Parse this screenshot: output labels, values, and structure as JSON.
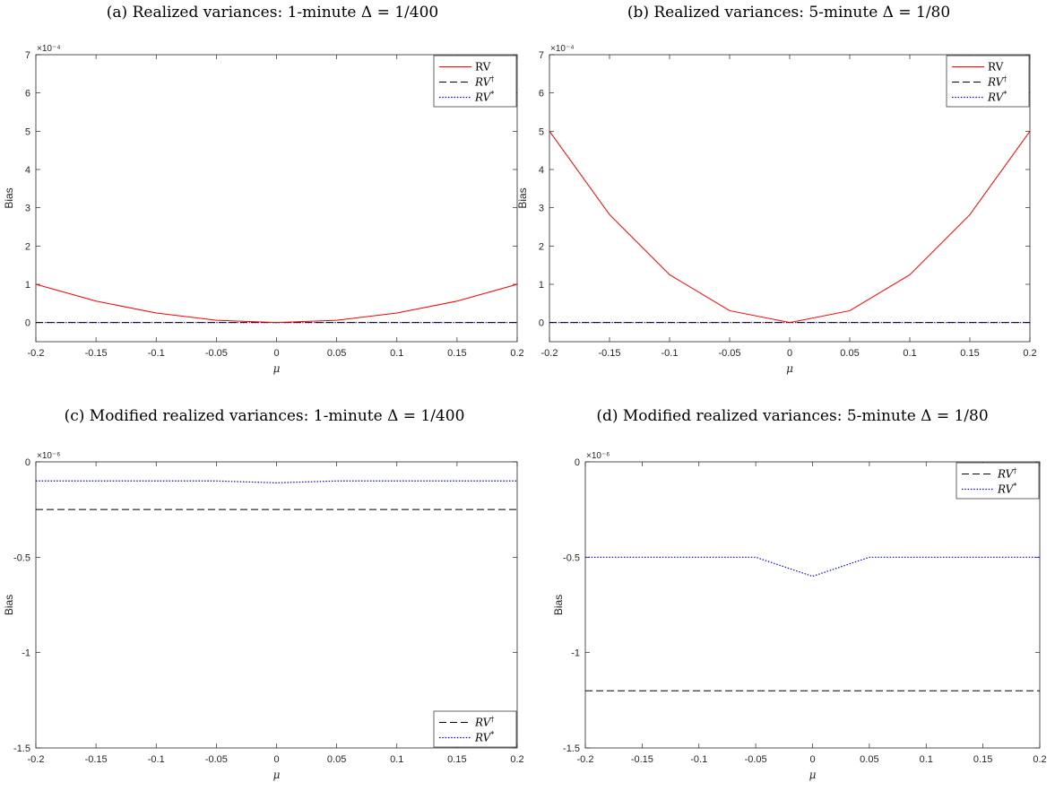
{
  "panels": [
    {
      "title": "(a) Realized variances: 1-minute Δ = 1/400",
      "exponent": "×10⁻⁴",
      "chart_data": {
        "type": "line",
        "x": [
          -0.2,
          -0.15,
          -0.1,
          -0.05,
          0,
          0.05,
          0.1,
          0.15,
          0.2
        ],
        "xlabel": "μ",
        "ylabel": "Bias",
        "xlim": [
          -0.2,
          0.2
        ],
        "ylim": [
          -0.5,
          7
        ],
        "yticks": [
          0,
          1,
          2,
          3,
          4,
          5,
          6,
          7
        ],
        "ytick_labels": [
          "0",
          "1",
          "2",
          "3",
          "4",
          "5",
          "6",
          "7"
        ],
        "xtick_labels": [
          "-0.2",
          "-0.15",
          "-0.1",
          "-0.05",
          "0",
          "0.05",
          "0.1",
          "0.15",
          "0.2"
        ],
        "legend_placement": "top-right",
        "series": [
          {
            "name": "RV",
            "style": "solid",
            "color": "#ff0000",
            "values": [
              1.0,
              0.56,
              0.25,
              0.06,
              0.0,
              0.06,
              0.25,
              0.56,
              1.0
            ]
          },
          {
            "name": "RV†",
            "style": "dashed",
            "color": "#000000",
            "values": [
              0,
              0,
              0,
              0,
              0,
              0,
              0,
              0,
              0
            ]
          },
          {
            "name": "RV*",
            "style": "dotted",
            "color": "#0000ff",
            "values": [
              0,
              0,
              0,
              0,
              0,
              0,
              0,
              0,
              0
            ]
          }
        ]
      }
    },
    {
      "title": "(b) Realized variances: 5-minute Δ = 1/80",
      "exponent": "×10⁻⁴",
      "chart_data": {
        "type": "line",
        "x": [
          -0.2,
          -0.15,
          -0.1,
          -0.05,
          0,
          0.05,
          0.1,
          0.15,
          0.2
        ],
        "xlabel": "μ",
        "ylabel": "Bias",
        "xlim": [
          -0.2,
          0.2
        ],
        "ylim": [
          -0.5,
          7
        ],
        "yticks": [
          0,
          1,
          2,
          3,
          4,
          5,
          6,
          7
        ],
        "ytick_labels": [
          "0",
          "1",
          "2",
          "3",
          "4",
          "5",
          "6",
          "7"
        ],
        "xtick_labels": [
          "-0.2",
          "-0.15",
          "-0.1",
          "-0.05",
          "0",
          "0.05",
          "0.1",
          "0.15",
          "0.2"
        ],
        "legend_placement": "top-right",
        "series": [
          {
            "name": "RV",
            "style": "solid",
            "color": "#ff0000",
            "values": [
              5.0,
              2.82,
              1.25,
              0.31,
              0.0,
              0.31,
              1.25,
              2.82,
              5.0
            ]
          },
          {
            "name": "RV†",
            "style": "dashed",
            "color": "#000000",
            "values": [
              0,
              0,
              0,
              0,
              0,
              0,
              0,
              0,
              0
            ]
          },
          {
            "name": "RV*",
            "style": "dotted",
            "color": "#0000ff",
            "values": [
              0,
              0,
              0,
              0,
              0,
              0,
              0,
              0,
              0
            ]
          }
        ]
      }
    },
    {
      "title": "(c) Modified realized variances: 1-minute Δ = 1/400",
      "exponent": "×10⁻⁶",
      "chart_data": {
        "type": "line",
        "x": [
          -0.2,
          -0.15,
          -0.1,
          -0.05,
          0,
          0.05,
          0.1,
          0.15,
          0.2
        ],
        "xlabel": "μ",
        "ylabel": "Bias",
        "xlim": [
          -0.2,
          0.2
        ],
        "ylim": [
          -1.5,
          0
        ],
        "yticks": [
          -1.5,
          -1,
          -0.5,
          0
        ],
        "ytick_labels": [
          "-1.5",
          "-1",
          "-0.5",
          "0"
        ],
        "xtick_labels": [
          "-0.2",
          "-0.15",
          "-0.1",
          "-0.05",
          "0",
          "0.05",
          "0.1",
          "0.15",
          "0.2"
        ],
        "legend_placement": "bottom-right",
        "series": [
          {
            "name": "RV†",
            "style": "dashed",
            "color": "#000000",
            "values": [
              -0.25,
              -0.25,
              -0.25,
              -0.25,
              -0.25,
              -0.25,
              -0.25,
              -0.25,
              -0.25
            ]
          },
          {
            "name": "RV*",
            "style": "dotted",
            "color": "#0000ff",
            "values": [
              -0.1,
              -0.1,
              -0.1,
              -0.1,
              -0.11,
              -0.1,
              -0.1,
              -0.1,
              -0.1
            ]
          }
        ]
      }
    },
    {
      "title": "(d) Modified realized variances: 5-minute Δ = 1/80",
      "exponent": "×10⁻⁶",
      "chart_data": {
        "type": "line",
        "x": [
          -0.2,
          -0.15,
          -0.1,
          -0.05,
          0,
          0.05,
          0.1,
          0.15,
          0.2
        ],
        "xlabel": "μ",
        "ylabel": "Bias",
        "xlim": [
          -0.2,
          0.2
        ],
        "ylim": [
          -1.5,
          0
        ],
        "yticks": [
          -1.5,
          -1,
          -0.5,
          0
        ],
        "ytick_labels": [
          "-1.5",
          "-1",
          "-0.5",
          "0"
        ],
        "xtick_labels": [
          "-0.2",
          "-0.15",
          "-0.1",
          "-0.05",
          "0",
          "0.05",
          "0.1",
          "0.15",
          "0.2"
        ],
        "legend_placement": "top-right",
        "series": [
          {
            "name": "RV†",
            "style": "dashed",
            "color": "#000000",
            "values": [
              -1.2,
              -1.2,
              -1.2,
              -1.2,
              -1.2,
              -1.2,
              -1.2,
              -1.2,
              -1.2
            ]
          },
          {
            "name": "RV*",
            "style": "dotted",
            "color": "#0000ff",
            "values": [
              -0.5,
              -0.5,
              -0.5,
              -0.5,
              -0.6,
              -0.5,
              -0.5,
              -0.5,
              -0.5
            ]
          }
        ]
      }
    }
  ]
}
